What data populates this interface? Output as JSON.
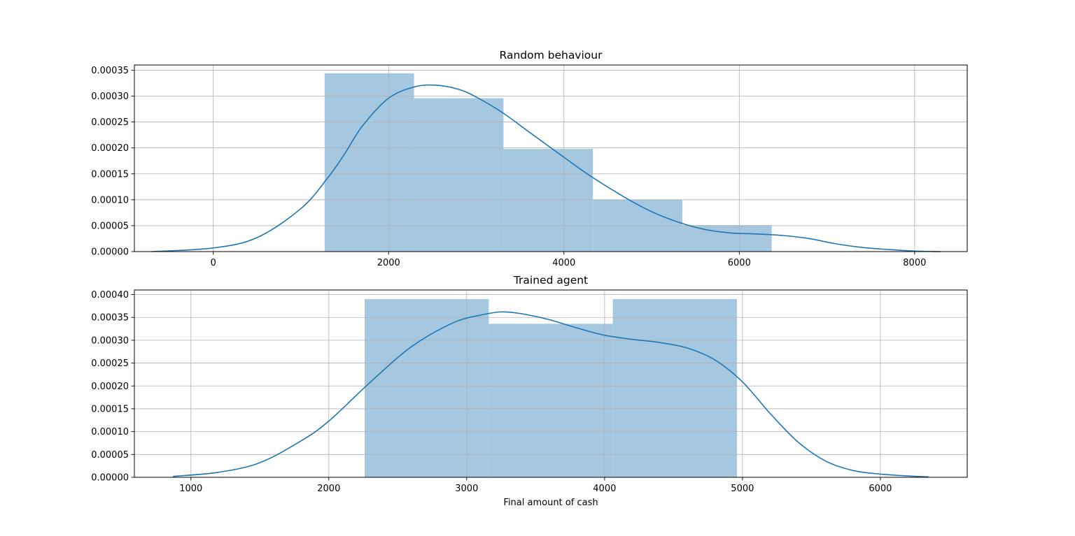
{
  "chart_data": [
    {
      "type": "histogram",
      "title": "Random behaviour",
      "xlabel": "",
      "ylabel": "",
      "xlim": [
        -900,
        8600
      ],
      "ylim": [
        0,
        0.00036
      ],
      "xticks": [
        0,
        2000,
        4000,
        6000,
        8000
      ],
      "xtick_labels": [
        "0",
        "2000",
        "4000",
        "6000",
        "8000"
      ],
      "yticks": [
        0,
        5e-05,
        0.0001,
        0.00015,
        0.0002,
        0.00025,
        0.0003,
        0.00035
      ],
      "ytick_labels": [
        "0.00000",
        "0.00005",
        "0.00010",
        "0.00015",
        "0.00020",
        "0.00025",
        "0.00030",
        "0.00035"
      ],
      "grid": true,
      "hist_color": "#a5c8e0",
      "kde_color": "#1f77b4",
      "bins": [
        {
          "x0": 1270,
          "x1": 2290,
          "density": 0.000344
        },
        {
          "x0": 2290,
          "x1": 3310,
          "density": 0.000296
        },
        {
          "x0": 3310,
          "x1": 4330,
          "density": 0.000198
        },
        {
          "x0": 4330,
          "x1": 5350,
          "density": 0.0001
        },
        {
          "x0": 5350,
          "x1": 6370,
          "density": 5.1e-05
        }
      ],
      "kde": {
        "x": [
          -700,
          0,
          500,
          1000,
          1300,
          1500,
          1700,
          2000,
          2300,
          2540,
          2800,
          3000,
          3300,
          3600,
          4000,
          4300,
          4700,
          5000,
          5300,
          5600,
          5900,
          6200,
          6500,
          6800,
          7100,
          7400,
          7700,
          8000,
          8300
        ],
        "y": [
          0,
          7e-06,
          2.7e-05,
          8.3e-05,
          0.000141,
          0.000189,
          0.000242,
          0.000296,
          0.000318,
          0.000321,
          0.000313,
          0.000298,
          0.000268,
          0.000231,
          0.000182,
          0.000146,
          0.000104,
          7.7e-05,
          5.7e-05,
          4.3e-05,
          3.6e-05,
          3.4e-05,
          3.1e-05,
          2.5e-05,
          1.5e-05,
          8e-06,
          4e-06,
          1e-06,
          0
        ]
      }
    },
    {
      "type": "histogram",
      "title": "Trained agent",
      "xlabel": "Final amount of cash",
      "ylabel": "",
      "xlim": [
        590,
        6630
      ],
      "ylim": [
        0,
        0.00041
      ],
      "xticks": [
        1000,
        2000,
        3000,
        4000,
        5000,
        6000
      ],
      "xtick_labels": [
        "1000",
        "2000",
        "3000",
        "4000",
        "5000",
        "6000"
      ],
      "yticks": [
        0,
        5e-05,
        0.0001,
        0.00015,
        0.0002,
        0.00025,
        0.0003,
        0.00035,
        0.0004
      ],
      "ytick_labels": [
        "0.00000",
        "0.00005",
        "0.00010",
        "0.00015",
        "0.00020",
        "0.00025",
        "0.00030",
        "0.00035",
        "0.00040"
      ],
      "grid": true,
      "hist_color": "#a5c8e0",
      "kde_color": "#1f77b4",
      "bins": [
        {
          "x0": 2260,
          "x1": 3160,
          "density": 0.00039
        },
        {
          "x0": 3160,
          "x1": 4060,
          "density": 0.000336
        },
        {
          "x0": 4060,
          "x1": 4960,
          "density": 0.00039
        }
      ],
      "kde": {
        "x": [
          870,
          1200,
          1500,
          1800,
          2000,
          2300,
          2600,
          2900,
          3100,
          3250,
          3400,
          3600,
          3800,
          4000,
          4200,
          4400,
          4600,
          4800,
          5000,
          5200,
          5400,
          5600,
          5800,
          6000,
          6200,
          6350
        ],
        "y": [
          2e-06,
          1.1e-05,
          3.2e-05,
          8e-05,
          0.000123,
          0.000208,
          0.000286,
          0.000338,
          0.000355,
          0.000362,
          0.000358,
          0.000345,
          0.000327,
          0.000311,
          0.000302,
          0.000295,
          0.000283,
          0.000257,
          0.000209,
          0.00014,
          7.8e-05,
          3.6e-05,
          1.5e-05,
          7e-06,
          3e-06,
          1e-06
        ]
      }
    }
  ]
}
